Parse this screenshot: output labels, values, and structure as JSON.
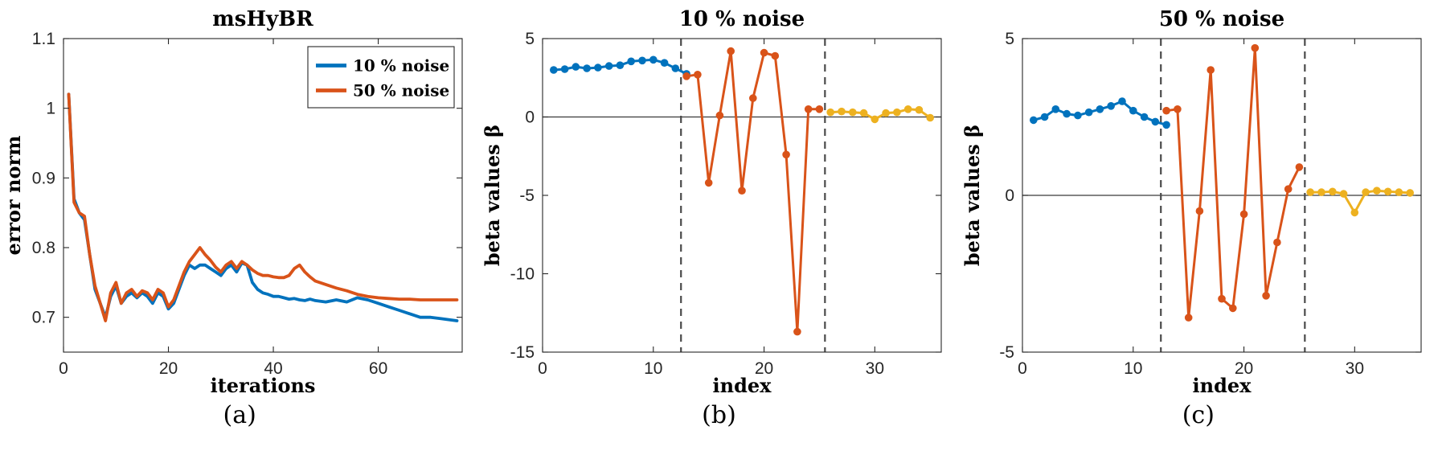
{
  "figure": {
    "captions": [
      "(a)",
      "(b)",
      "(c)"
    ]
  },
  "colors": {
    "blue": "#0072BD",
    "orange": "#D95319",
    "yellow": "#EDB120",
    "axis": "#262626",
    "dashed_line": "#4a4a4a"
  },
  "chart_data": [
    {
      "type": "line",
      "title": "msHyBR",
      "xlabel": "iterations",
      "ylabel": "error norm",
      "xlim": [
        0,
        76
      ],
      "ylim": [
        0.65,
        1.1
      ],
      "xticks": [
        0,
        20,
        40,
        60
      ],
      "yticks": [
        0.7,
        0.8,
        0.9,
        1,
        1.1
      ],
      "grid": false,
      "markers": false,
      "line_width": 3.8,
      "legend": {
        "show": true,
        "position": "top-right"
      },
      "series": [
        {
          "name": "10 % noise",
          "color": "#0072BD",
          "x": [
            1,
            2,
            3,
            4,
            5,
            6,
            7,
            8,
            9,
            10,
            11,
            12,
            13,
            14,
            15,
            16,
            17,
            18,
            19,
            20,
            21,
            22,
            23,
            24,
            25,
            26,
            27,
            28,
            29,
            30,
            31,
            32,
            33,
            34,
            35,
            36,
            37,
            38,
            39,
            40,
            41,
            42,
            43,
            44,
            45,
            46,
            47,
            48,
            50,
            52,
            54,
            56,
            58,
            60,
            62,
            64,
            66,
            68,
            70,
            72,
            74,
            75
          ],
          "y": [
            1.02,
            0.87,
            0.85,
            0.84,
            0.79,
            0.74,
            0.72,
            0.7,
            0.73,
            0.745,
            0.72,
            0.73,
            0.735,
            0.728,
            0.735,
            0.73,
            0.72,
            0.735,
            0.73,
            0.712,
            0.72,
            0.74,
            0.76,
            0.775,
            0.77,
            0.775,
            0.775,
            0.77,
            0.765,
            0.76,
            0.77,
            0.775,
            0.765,
            0.778,
            0.775,
            0.75,
            0.74,
            0.735,
            0.733,
            0.73,
            0.73,
            0.728,
            0.726,
            0.727,
            0.725,
            0.724,
            0.726,
            0.724,
            0.722,
            0.725,
            0.722,
            0.728,
            0.725,
            0.72,
            0.715,
            0.71,
            0.705,
            0.7,
            0.7,
            0.698,
            0.696,
            0.695
          ]
        },
        {
          "name": "50 % noise",
          "color": "#D95319",
          "x": [
            1,
            2,
            3,
            4,
            5,
            6,
            7,
            8,
            9,
            10,
            11,
            12,
            13,
            14,
            15,
            16,
            17,
            18,
            19,
            20,
            21,
            22,
            23,
            24,
            25,
            26,
            27,
            28,
            29,
            30,
            31,
            32,
            33,
            34,
            35,
            36,
            37,
            38,
            39,
            40,
            41,
            42,
            43,
            44,
            45,
            46,
            47,
            48,
            50,
            52,
            54,
            56,
            58,
            60,
            62,
            64,
            66,
            68,
            70,
            72,
            74,
            75
          ],
          "y": [
            1.02,
            0.865,
            0.85,
            0.845,
            0.79,
            0.745,
            0.72,
            0.695,
            0.735,
            0.75,
            0.72,
            0.735,
            0.74,
            0.73,
            0.738,
            0.735,
            0.725,
            0.74,
            0.735,
            0.715,
            0.725,
            0.745,
            0.765,
            0.78,
            0.79,
            0.8,
            0.79,
            0.782,
            0.772,
            0.765,
            0.775,
            0.78,
            0.77,
            0.78,
            0.775,
            0.768,
            0.763,
            0.76,
            0.76,
            0.758,
            0.757,
            0.757,
            0.76,
            0.77,
            0.775,
            0.765,
            0.758,
            0.752,
            0.747,
            0.742,
            0.738,
            0.733,
            0.73,
            0.728,
            0.727,
            0.726,
            0.726,
            0.725,
            0.725,
            0.725,
            0.725,
            0.725
          ]
        }
      ]
    },
    {
      "type": "line",
      "title": "10 % noise",
      "xlabel": "index",
      "ylabel": "beta values β",
      "xlim": [
        0,
        36
      ],
      "ylim": [
        -15,
        5
      ],
      "xticks": [
        0,
        10,
        20,
        30
      ],
      "yticks": [
        -15,
        -10,
        -5,
        0,
        5
      ],
      "grid": false,
      "zero_line": true,
      "vlines": [
        12.5,
        25.5
      ],
      "markers": true,
      "line_width": 3,
      "legend": {
        "show": false
      },
      "series": [
        {
          "name": "segment-blue",
          "color": "#0072BD",
          "x": [
            1,
            2,
            3,
            4,
            5,
            6,
            7,
            8,
            9,
            10,
            11,
            12,
            13
          ],
          "y": [
            3.0,
            3.05,
            3.2,
            3.1,
            3.15,
            3.25,
            3.3,
            3.55,
            3.6,
            3.65,
            3.45,
            3.1,
            2.75
          ]
        },
        {
          "name": "segment-orange",
          "color": "#D95319",
          "x": [
            13,
            14,
            15,
            16,
            17,
            18,
            19,
            20,
            21,
            22,
            23,
            24,
            25
          ],
          "y": [
            2.6,
            2.7,
            -4.2,
            0.1,
            4.2,
            -4.7,
            1.2,
            4.1,
            3.9,
            -2.4,
            -13.7,
            0.5,
            0.5
          ]
        },
        {
          "name": "segment-yellow",
          "color": "#EDB120",
          "x": [
            26,
            27,
            28,
            29,
            30,
            31,
            32,
            33,
            34,
            35
          ],
          "y": [
            0.3,
            0.35,
            0.3,
            0.25,
            -0.15,
            0.25,
            0.3,
            0.5,
            0.45,
            -0.05
          ]
        }
      ]
    },
    {
      "type": "line",
      "title": "50 % noise",
      "xlabel": "index",
      "ylabel": "beta values β",
      "xlim": [
        0,
        36
      ],
      "ylim": [
        -5,
        5
      ],
      "xticks": [
        0,
        10,
        20,
        30
      ],
      "yticks": [
        -5,
        0,
        5
      ],
      "grid": false,
      "zero_line": true,
      "vlines": [
        12.5,
        25.5
      ],
      "markers": true,
      "line_width": 3,
      "legend": {
        "show": false
      },
      "series": [
        {
          "name": "segment-blue",
          "color": "#0072BD",
          "x": [
            1,
            2,
            3,
            4,
            5,
            6,
            7,
            8,
            9,
            10,
            11,
            12,
            13
          ],
          "y": [
            2.4,
            2.5,
            2.75,
            2.6,
            2.55,
            2.65,
            2.75,
            2.85,
            3.0,
            2.7,
            2.5,
            2.35,
            2.25
          ]
        },
        {
          "name": "segment-orange",
          "color": "#D95319",
          "x": [
            13,
            14,
            15,
            16,
            17,
            18,
            19,
            20,
            21,
            22,
            23,
            24,
            25
          ],
          "y": [
            2.7,
            2.75,
            -3.9,
            -0.5,
            4.0,
            -3.3,
            -3.6,
            -0.6,
            4.7,
            -3.2,
            -1.5,
            0.2,
            0.9
          ]
        },
        {
          "name": "segment-yellow",
          "color": "#EDB120",
          "x": [
            26,
            27,
            28,
            29,
            30,
            31,
            32,
            33,
            34,
            35
          ],
          "y": [
            0.1,
            0.1,
            0.12,
            0.05,
            -0.55,
            0.1,
            0.15,
            0.12,
            0.1,
            0.08
          ]
        }
      ]
    }
  ]
}
